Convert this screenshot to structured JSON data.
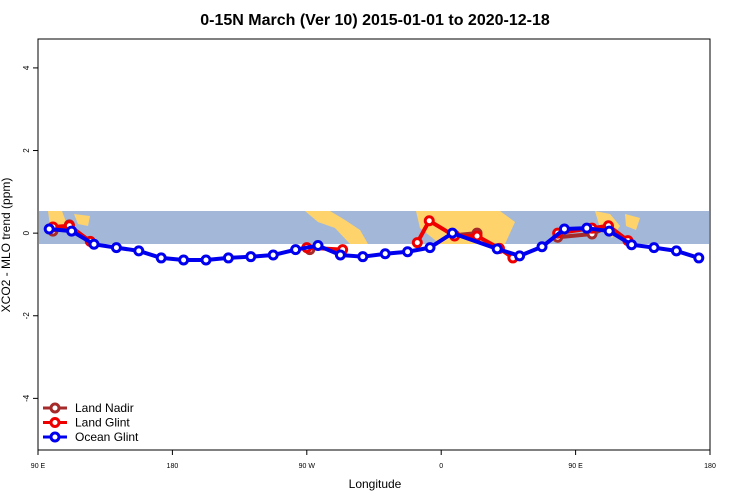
{
  "chart_data": {
    "type": "line",
    "title": "0-15N March (Ver 10)   2015-01-01 to 2020-12-18",
    "xlabel": "Longitude",
    "ylabel": "XCO2 - MLO trend (ppm)",
    "xlim": [
      90,
      540
    ],
    "ylim": [
      -5.25,
      4.7
    ],
    "xticks": [
      {
        "value": 90,
        "label": "90 E"
      },
      180,
      {
        "value": 270,
        "label": "90 W"
      },
      {
        "value": 360,
        "label": "0"
      },
      {
        "value": 450,
        "label": "90 E"
      },
      {
        "value": 540,
        "label": "180"
      }
    ],
    "yticks": [
      -4,
      -2,
      0,
      2,
      4
    ],
    "legend": "bottom-left",
    "series": [
      {
        "name": "Land Nadir",
        "color": "#a52a2a",
        "x": [
          100,
          111,
          null,
          272,
          null,
          369,
          384,
          null,
          438,
          461,
          472
        ],
        "values": [
          0.05,
          0.2,
          null,
          -0.4,
          null,
          -0.05,
          0.0,
          null,
          -0.1,
          -0.02,
          0.15
        ]
      },
      {
        "name": "Land Glint",
        "color": "#ee0000",
        "x": [
          100,
          111,
          125,
          null,
          270,
          294,
          null,
          344,
          352,
          369,
          384,
          399,
          408,
          null,
          438,
          461,
          472,
          485
        ],
        "values": [
          0.15,
          0.18,
          -0.2,
          null,
          -0.35,
          -0.4,
          null,
          -0.23,
          0.3,
          -0.07,
          -0.07,
          -0.37,
          -0.6,
          null,
          0.0,
          0.12,
          0.18,
          -0.18
        ]
      },
      {
        "name": "Ocean Glint",
        "color": "#0000ee",
        "x": [
          97.5,
          112.5,
          127.5,
          142.5,
          157.5,
          172.5,
          187.5,
          202.5,
          217.5,
          232.5,
          247.5,
          262.5,
          277.5,
          292.5,
          307.5,
          322.5,
          337.5,
          352.5,
          367.5,
          397.5,
          412.5,
          427.5,
          442.5,
          457.5,
          472.5,
          487.5,
          502.5,
          517.5,
          532.5
        ],
        "values": [
          0.1,
          0.05,
          -0.27,
          -0.35,
          -0.43,
          -0.6,
          -0.65,
          -0.65,
          -0.6,
          -0.57,
          -0.53,
          -0.4,
          -0.3,
          -0.53,
          -0.57,
          -0.5,
          -0.45,
          -0.35,
          0.0,
          -0.38,
          -0.55,
          -0.33,
          0.1,
          0.12,
          0.05,
          -0.28,
          -0.35,
          -0.43,
          -0.6
        ]
      }
    ]
  }
}
